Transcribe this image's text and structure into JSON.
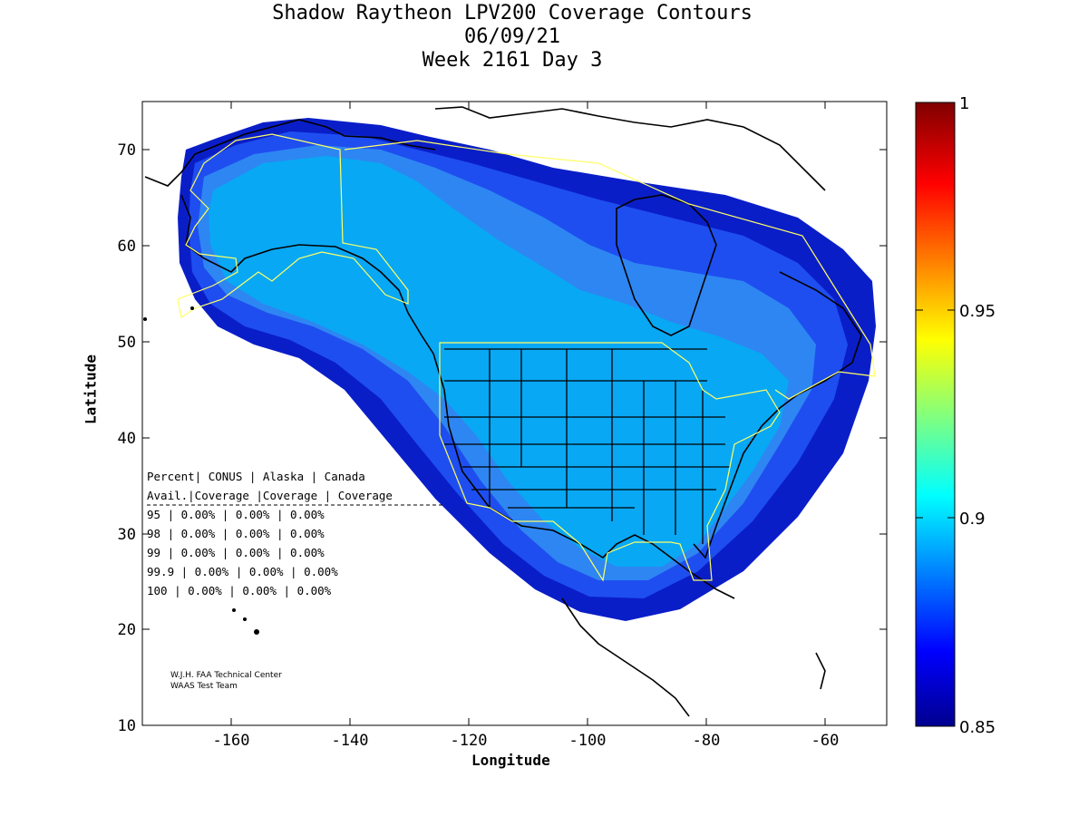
{
  "title": {
    "line1": "Shadow Raytheon LPV200 Coverage Contours",
    "line2": "06/09/21",
    "line3": "Week 2161 Day 3"
  },
  "axes": {
    "xlabel": "Longitude",
    "ylabel": "Latitude",
    "x_ticks": [
      "-160",
      "-140",
      "-120",
      "-100",
      "-80",
      "-60"
    ],
    "y_ticks": [
      "70",
      "60",
      "50",
      "40",
      "30",
      "20",
      "10"
    ],
    "xlim": [
      -175,
      -50
    ],
    "ylim": [
      10,
      75
    ]
  },
  "colorbar": {
    "ticks": [
      "1",
      "0.95",
      "0.9",
      "0.85"
    ],
    "range": [
      0.85,
      1.0
    ]
  },
  "table": {
    "header1": "Percent| CONUS   | Alaska  | Canada",
    "header2": " Avail.|Coverage |Coverage | Coverage",
    "rows": [
      " 95    | 0.00%  | 0.00% | 0.00%",
      " 98    | 0.00%  | 0.00% | 0.00%",
      " 99    | 0.00%  | 0.00% | 0.00%",
      "99.9   | 0.00%  | 0.00% | 0.00%",
      " 100   | 0.00%  | 0.00% | 0.00%"
    ]
  },
  "credits": {
    "line1": "W.J.H. FAA Technical Center",
    "line2": "WAAS Test Team"
  },
  "colors": {
    "level_outer": "#0a1ec8",
    "level_mid": "#1e4ef0",
    "level_inner": "#2e86f2",
    "level_core": "#08a8f4",
    "region_outline": "#ffff66"
  }
}
